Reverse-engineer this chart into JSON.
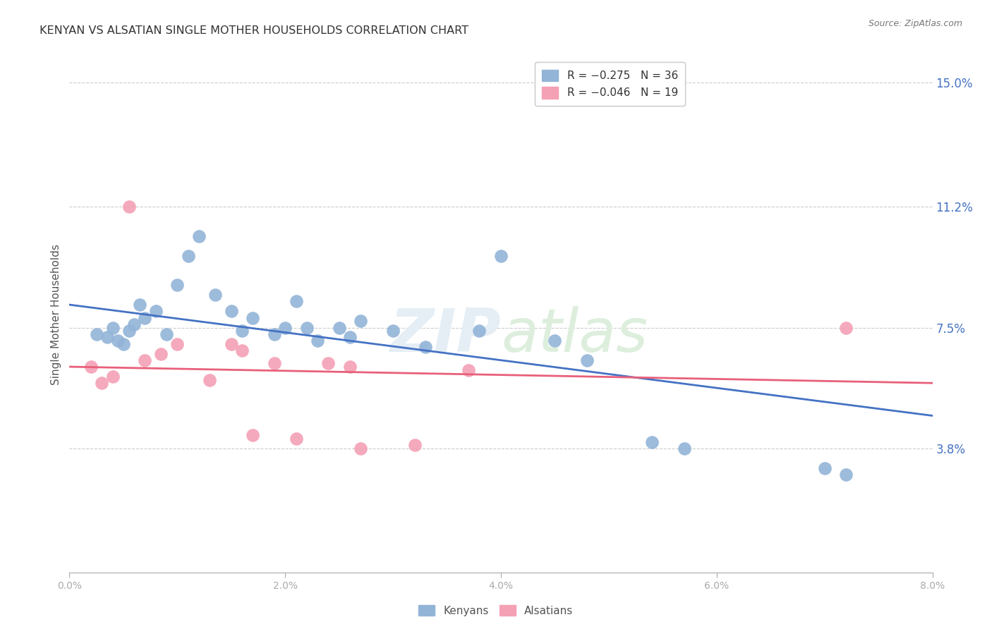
{
  "title": "KENYAN VS ALSATIAN SINGLE MOTHER HOUSEHOLDS CORRELATION CHART",
  "source": "Source: ZipAtlas.com",
  "ylabel": "Single Mother Households",
  "watermark_line1": "ZIP",
  "watermark_line2": "atlas",
  "right_yticks": [
    3.8,
    7.5,
    11.2,
    15.0
  ],
  "right_yticklabels": [
    "3.8%",
    "7.5%",
    "11.2%",
    "15.0%"
  ],
  "xticks": [
    0.0,
    2.0,
    4.0,
    6.0,
    8.0
  ],
  "xticklabels": [
    "0.0%",
    "2.0%",
    "4.0%",
    "6.0%",
    "8.0%"
  ],
  "xlim": [
    0.0,
    8.0
  ],
  "ylim": [
    0.0,
    15.8
  ],
  "legend_blue_r": "R = −0.275",
  "legend_blue_n": "N = 36",
  "legend_pink_r": "R = −0.046",
  "legend_pink_n": "N = 19",
  "blue_color": "#92b4d7",
  "pink_color": "#f4a0b5",
  "blue_line_color": "#4472c4",
  "pink_line_color": "#e8607a",
  "right_tick_color": "#4472c4",
  "background_color": "#ffffff",
  "grid_color": "#cccccc",
  "kenyan_x": [
    0.25,
    0.35,
    0.4,
    0.45,
    0.5,
    0.55,
    0.6,
    0.65,
    0.7,
    0.8,
    0.9,
    1.0,
    1.1,
    1.2,
    1.35,
    1.5,
    1.6,
    1.7,
    1.9,
    2.0,
    2.1,
    2.2,
    2.3,
    2.5,
    2.6,
    2.7,
    3.0,
    3.3,
    3.8,
    4.0,
    4.5,
    4.8,
    5.4,
    5.7,
    7.0,
    7.2
  ],
  "kenyan_y": [
    7.3,
    7.2,
    7.5,
    7.1,
    7.0,
    7.4,
    7.6,
    8.2,
    7.8,
    8.0,
    7.3,
    8.8,
    9.7,
    10.3,
    8.5,
    8.0,
    7.4,
    7.8,
    7.3,
    7.5,
    8.3,
    7.5,
    7.1,
    7.5,
    7.2,
    7.7,
    7.4,
    6.9,
    7.4,
    9.7,
    7.1,
    6.5,
    4.0,
    3.8,
    3.2,
    3.0
  ],
  "alsatian_x": [
    0.2,
    0.3,
    0.4,
    0.55,
    0.7,
    0.85,
    1.0,
    1.3,
    1.5,
    1.6,
    1.7,
    1.9,
    2.1,
    2.4,
    2.6,
    2.7,
    3.2,
    3.7,
    7.2
  ],
  "alsatian_y": [
    6.3,
    5.8,
    6.0,
    11.2,
    6.5,
    6.7,
    7.0,
    5.9,
    7.0,
    6.8,
    4.2,
    6.4,
    4.1,
    6.4,
    6.3,
    3.8,
    3.9,
    6.2,
    7.5
  ],
  "blue_trend_x": [
    0.0,
    8.0
  ],
  "blue_trend_y": [
    8.2,
    4.8
  ],
  "pink_trend_x": [
    0.0,
    8.0
  ],
  "pink_trend_y": [
    6.3,
    5.8
  ]
}
